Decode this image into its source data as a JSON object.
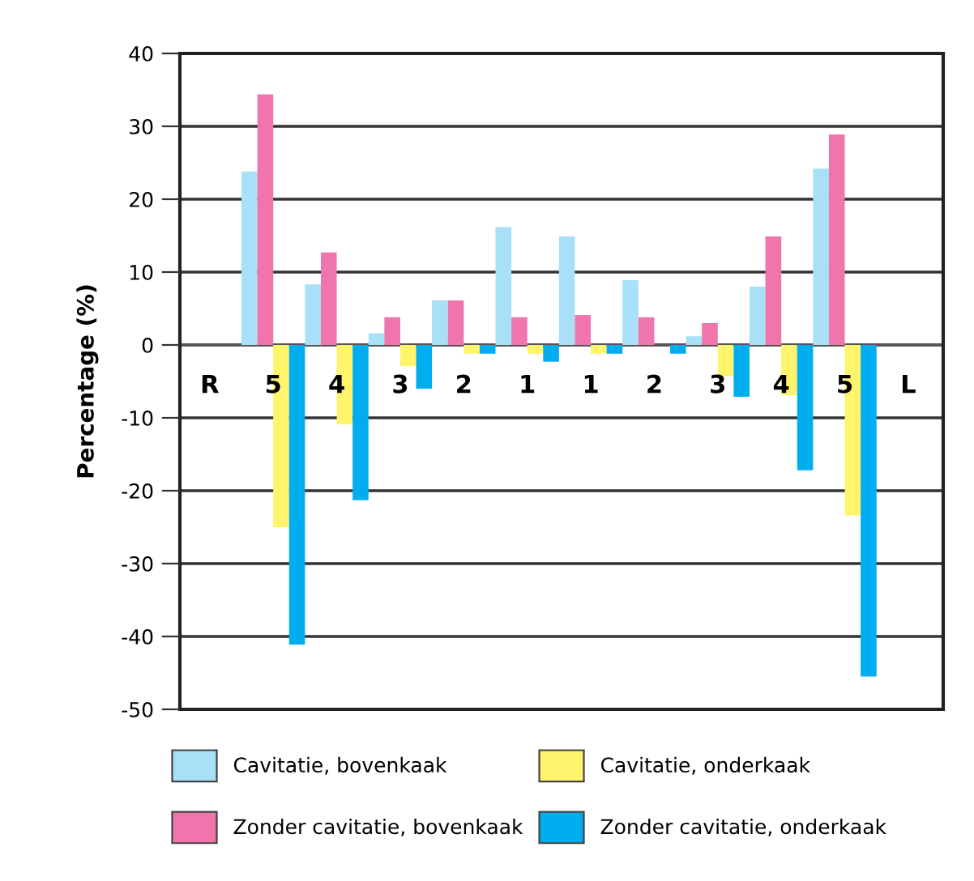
{
  "chart_data": {
    "type": "bar",
    "ylabel": "Percentage (%)",
    "categories": [
      "R",
      "5",
      "4",
      "3",
      "2",
      "1",
      "1",
      "2",
      "3",
      "4",
      "5",
      "L"
    ],
    "series": [
      {
        "name": "Cavitatie, bovenkaak",
        "color": "#a8e0f8",
        "values": [
          null,
          23.8,
          8.3,
          1.6,
          6.1,
          16.2,
          14.9,
          8.9,
          1.2,
          8.0,
          24.2,
          null
        ]
      },
      {
        "name": "Zonder cavitatie, bovenkaak",
        "color": "#f075ad",
        "values": [
          null,
          34.4,
          12.7,
          3.8,
          6.1,
          3.8,
          4.1,
          3.8,
          3.0,
          14.9,
          28.9,
          null
        ]
      },
      {
        "name": "Cavitatie, onderkaak",
        "color": "#fff46b",
        "values": [
          null,
          -25.0,
          -10.9,
          -2.9,
          -1.2,
          -1.2,
          -1.2,
          0,
          -4.3,
          -6.9,
          -23.4,
          null
        ]
      },
      {
        "name": "Zonder cavitatie, onderkaak",
        "color": "#00aeef",
        "values": [
          null,
          -41.1,
          -21.3,
          -6.0,
          -1.2,
          -2.3,
          -1.2,
          -1.2,
          -7.1,
          -17.2,
          -45.5,
          null
        ]
      }
    ],
    "ylim": [
      -50,
      40
    ],
    "yticks": [
      -50,
      -40,
      -30,
      -20,
      -10,
      0,
      10,
      20,
      30,
      40
    ],
    "grid": "y",
    "legend": "bottom"
  }
}
